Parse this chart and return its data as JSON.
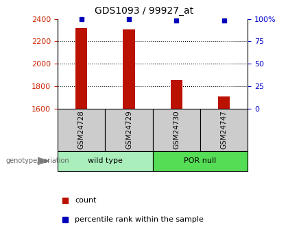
{
  "title": "GDS1093 / 99927_at",
  "samples": [
    "GSM24728",
    "GSM24729",
    "GSM24730",
    "GSM24747"
  ],
  "counts": [
    2320,
    2305,
    1855,
    1705
  ],
  "percentiles": [
    99.5,
    99.5,
    98.5,
    98.0
  ],
  "ylim_left": [
    1600,
    2400
  ],
  "ylim_right": [
    0,
    100
  ],
  "yticks_left": [
    1600,
    1800,
    2000,
    2200,
    2400
  ],
  "yticks_right": [
    0,
    25,
    50,
    75,
    100
  ],
  "ytick_labels_right": [
    "0",
    "25",
    "50",
    "75",
    "100%"
  ],
  "bar_color": "#BB1100",
  "dot_color": "#0000BB",
  "dot_size": 5,
  "bar_width": 0.25,
  "label_color_left": "#CC2200",
  "label_color_right": "#0000CC",
  "group_box_color_1": "#AAEEBB",
  "group_box_color_2": "#55DD55",
  "sample_box_color": "#CCCCCC",
  "legend_count_color": "#BB1100",
  "legend_pct_color": "#0000BB"
}
